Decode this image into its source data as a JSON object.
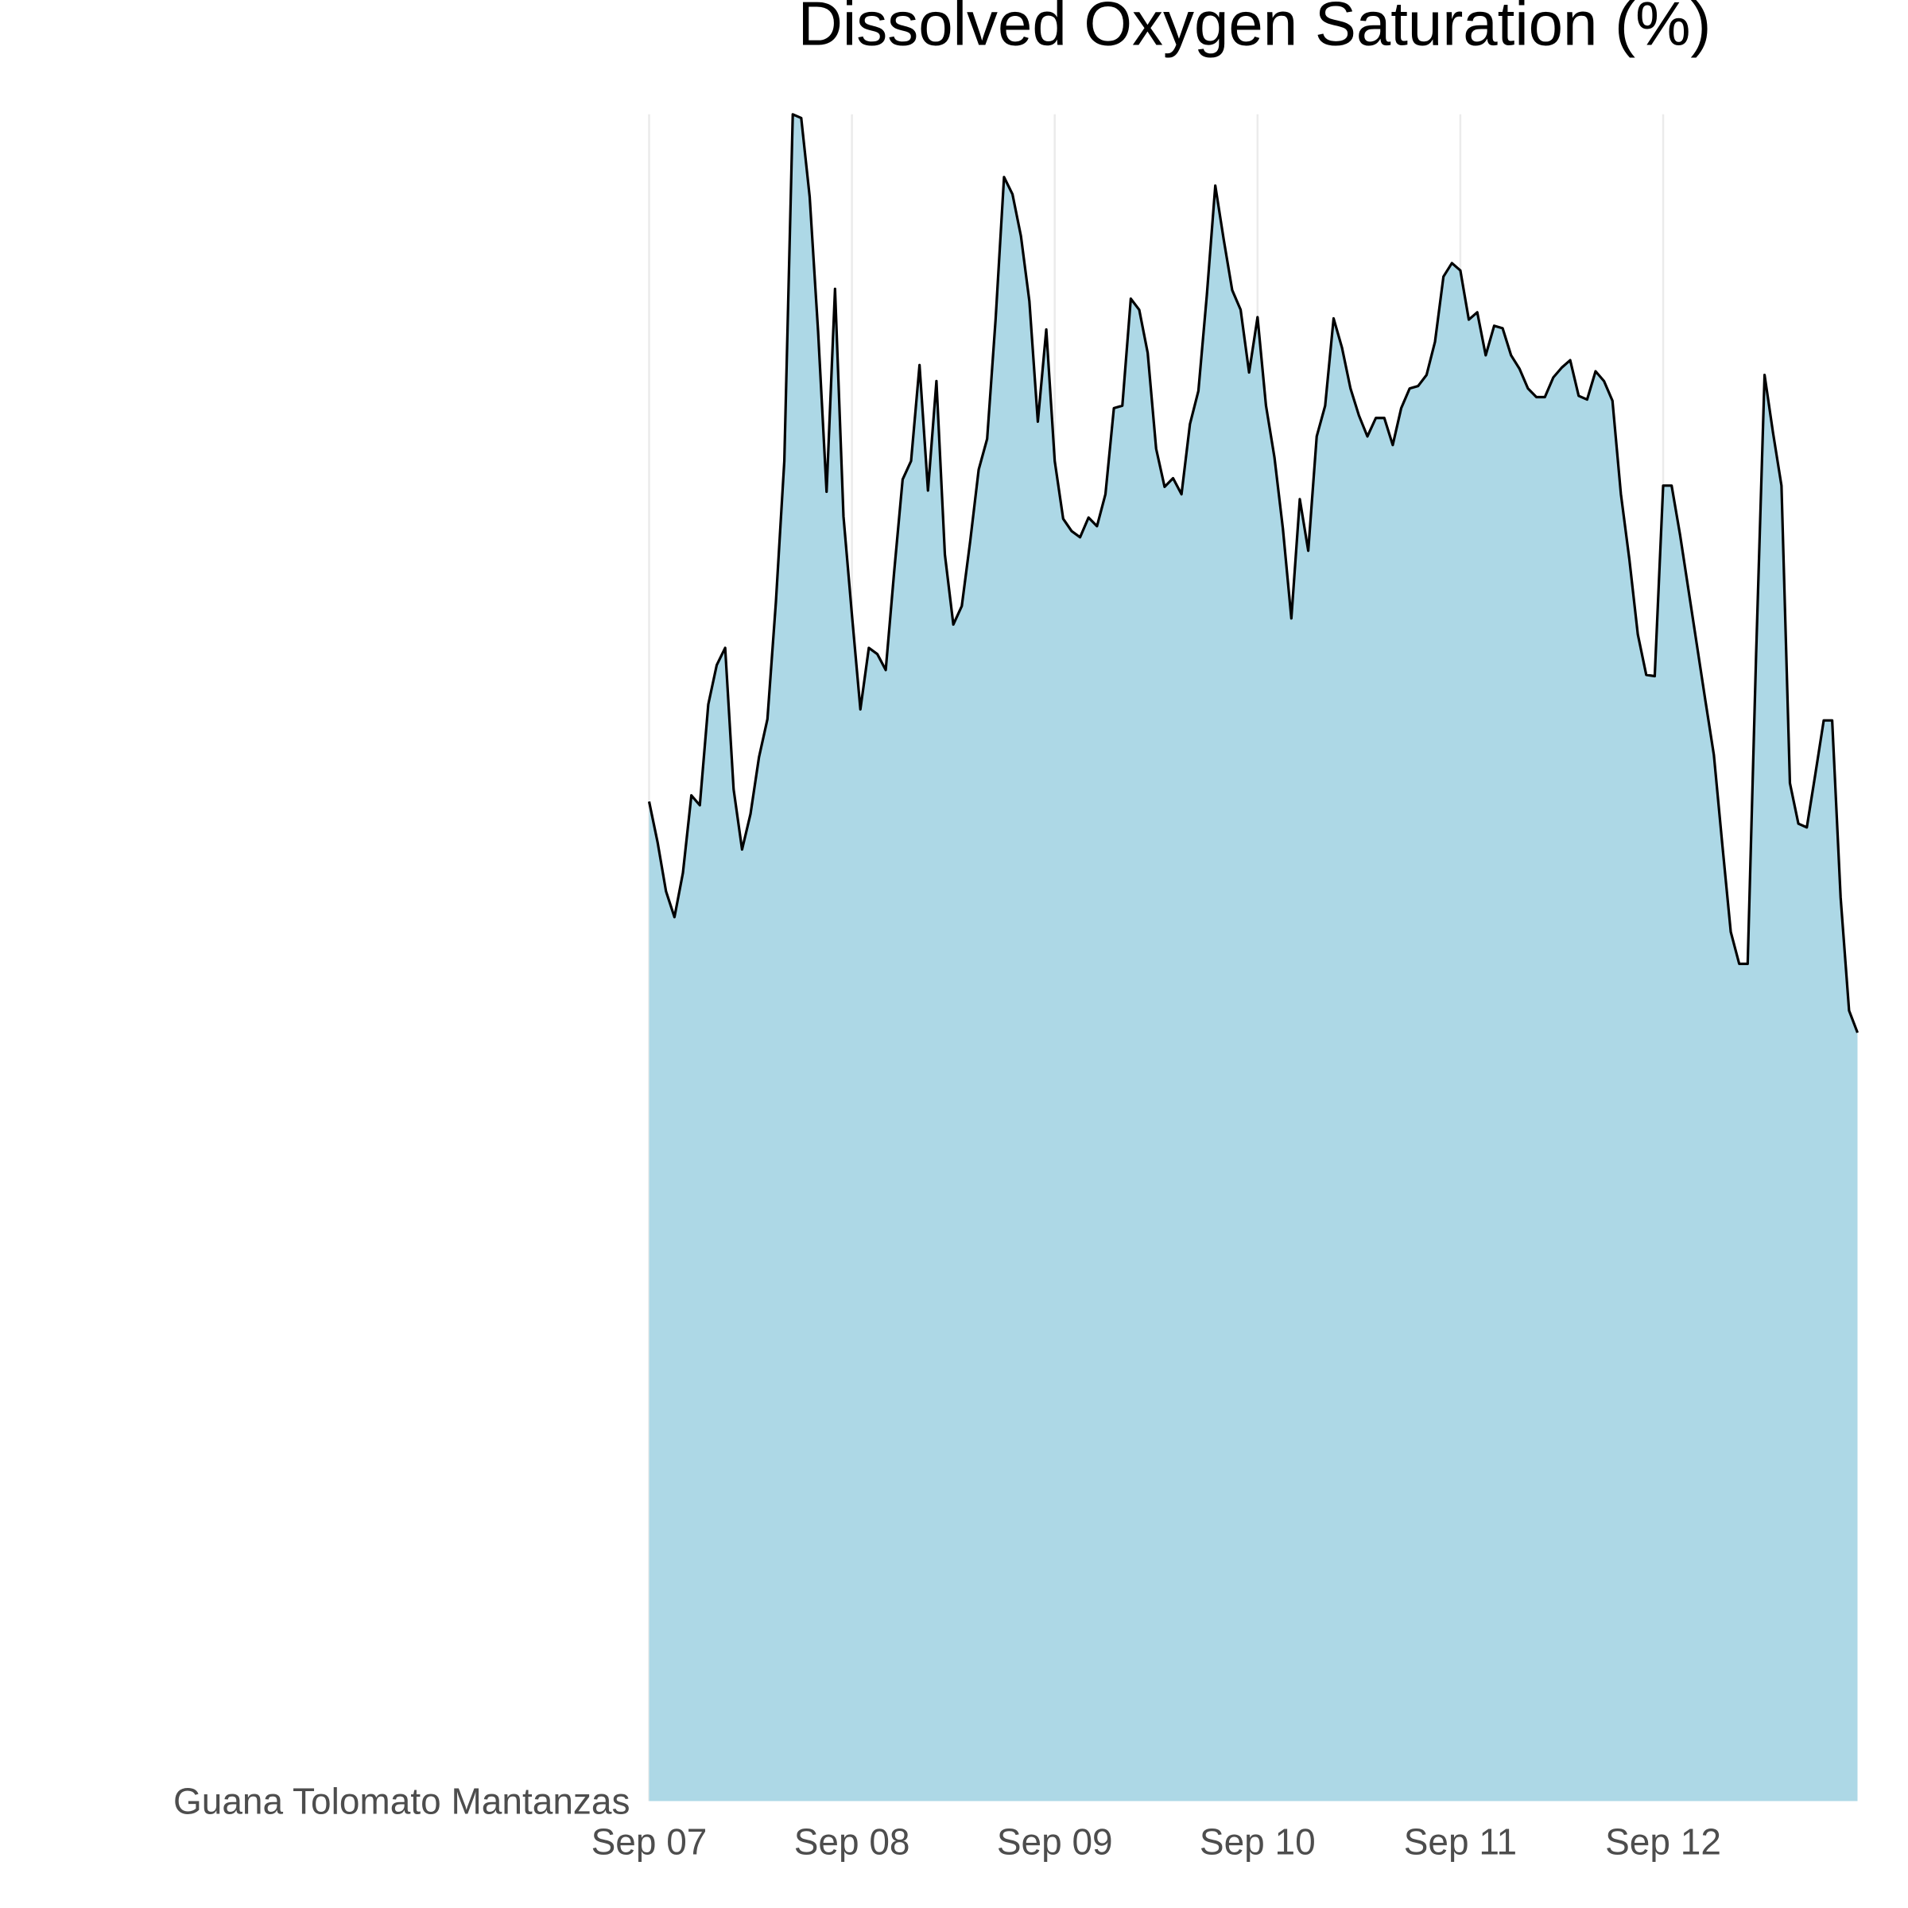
{
  "chart_data": {
    "type": "area",
    "title": "Dissolved Oxygen Saturation (%)",
    "x": [
      0,
      1,
      2,
      3,
      4,
      5,
      6,
      7,
      8,
      9,
      10,
      11,
      12,
      13,
      14,
      15,
      16,
      17,
      18,
      19,
      20,
      21,
      22,
      23,
      24,
      25,
      26,
      27,
      28,
      29,
      30,
      31,
      32,
      33,
      34,
      35,
      36,
      37,
      38,
      39,
      40,
      41,
      42,
      43,
      44,
      45,
      46,
      47,
      48,
      49,
      50,
      51,
      52,
      53,
      54,
      55,
      56,
      57,
      58,
      59,
      60,
      61,
      62,
      63,
      64,
      65,
      66,
      67,
      68,
      69,
      70,
      71,
      72,
      73,
      74,
      75,
      76,
      77,
      78,
      79,
      80,
      81,
      82,
      83,
      84,
      85,
      86,
      87,
      88,
      89,
      90,
      91,
      92,
      93,
      94,
      95,
      96,
      97,
      98,
      99,
      100,
      101,
      102,
      103,
      104,
      105,
      106,
      107,
      108,
      109,
      110,
      111,
      112,
      113,
      114,
      115,
      116,
      117,
      118,
      119,
      120,
      121,
      122,
      123,
      124,
      125,
      126,
      127,
      128,
      129,
      130,
      131,
      132,
      133,
      134,
      135,
      136,
      137,
      138,
      139,
      140,
      141,
      142,
      143
    ],
    "series": [
      {
        "name": "Guana Tolomato Mantanzas",
        "color": "#add8e6",
        "line_color": "#000000",
        "values": [
          81.3,
          78.0,
          74.0,
          71.9,
          75.5,
          81.8,
          81.0,
          89.2,
          92.4,
          93.8,
          82.3,
          77.4,
          80.3,
          84.9,
          88.0,
          97.5,
          109.0,
          137.2,
          136.9,
          130.5,
          119.5,
          106.5,
          123.0,
          104.5,
          96.5,
          88.8,
          93.8,
          93.3,
          92.0,
          100.0,
          107.5,
          109.0,
          116.8,
          106.6,
          115.5,
          101.4,
          95.7,
          97.2,
          102.5,
          108.3,
          110.8,
          120.5,
          132.1,
          130.7,
          127.3,
          122.0,
          112.2,
          119.7,
          109.0,
          104.3,
          103.3,
          102.8,
          104.4,
          103.7,
          106.3,
          113.3,
          113.5,
          122.2,
          121.3,
          117.8,
          110.0,
          106.9,
          107.6,
          106.3,
          112.0,
          114.7,
          122.5,
          131.4,
          127.0,
          122.9,
          121.3,
          116.2,
          120.7,
          113.5,
          109.3,
          103.5,
          96.2,
          105.9,
          101.7,
          111.0,
          113.5,
          120.6,
          118.2,
          114.9,
          112.7,
          111.0,
          112.5,
          112.5,
          110.3,
          113.3,
          114.9,
          115.1,
          116.0,
          118.7,
          124.0,
          125.1,
          124.5,
          120.5,
          121.1,
          117.6,
          120.0,
          119.8,
          117.6,
          116.5,
          114.9,
          114.2,
          114.2,
          115.8,
          116.6,
          117.2,
          114.3,
          114.0,
          116.3,
          115.5,
          113.9,
          106.3,
          101.0,
          94.9,
          91.6,
          91.5,
          107.0,
          107.0,
          103.0,
          98.5,
          94.0,
          89.5,
          85.1,
          77.8,
          70.7,
          68.1,
          68.1,
          93.3,
          116.0,
          111.3,
          107.0,
          82.8,
          79.5,
          79.2,
          83.5,
          87.9,
          87.9,
          73.5,
          64.3,
          62.5
        ]
      }
    ],
    "xlim": [
      0,
      143.3
    ],
    "xticks": [
      {
        "value": 0,
        "label": "Sep 07"
      },
      {
        "value": 24,
        "label": "Sep 08"
      },
      {
        "value": 48,
        "label": "Sep 09"
      },
      {
        "value": 72,
        "label": "Sep 10"
      },
      {
        "value": 96,
        "label": "Sep 11"
      },
      {
        "value": 120,
        "label": "Sep 12"
      }
    ],
    "ylim": [
      0,
      137.2
    ],
    "grid": true
  }
}
